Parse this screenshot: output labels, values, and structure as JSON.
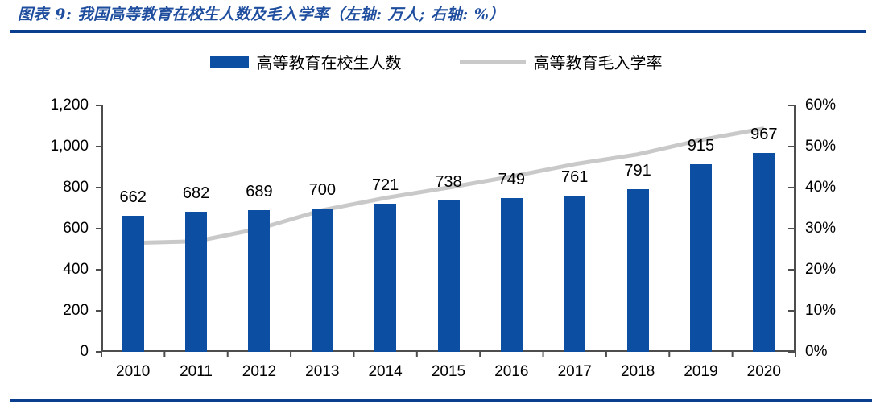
{
  "title": "图表 9: 我国高等教育在校生人数及毛入学率（左轴: 万人; 右轴: %）",
  "legend": {
    "bars_label": "高等教育在校生人数",
    "line_label": "高等教育毛入学率"
  },
  "colors": {
    "bar": "#0b4ea2",
    "line": "#c9c9c9",
    "title": "#1f4e9f",
    "rule": "#0a3f8f",
    "axis": "#4d4d4d",
    "text": "#000000"
  },
  "chart_data": {
    "type": "bar",
    "title": "我国高等教育在校生人数及毛入学率",
    "categories": [
      "2010",
      "2011",
      "2012",
      "2013",
      "2014",
      "2015",
      "2016",
      "2017",
      "2018",
      "2019",
      "2020"
    ],
    "series": [
      {
        "name": "高等教育在校生人数",
        "type": "bar",
        "axis": "left",
        "unit": "万人",
        "values": [
          662,
          682,
          689,
          700,
          721,
          738,
          749,
          761,
          791,
          915,
          967
        ],
        "data_labels": [
          "662",
          "682",
          "689",
          "700",
          "721",
          "738",
          "749",
          "761",
          "791",
          "915",
          "967"
        ]
      },
      {
        "name": "高等教育毛入学率",
        "type": "line",
        "axis": "right",
        "unit": "%",
        "values": [
          26.5,
          26.9,
          30.0,
          34.5,
          37.5,
          40.0,
          42.7,
          45.7,
          48.1,
          51.6,
          54.4
        ]
      }
    ],
    "left_axis": {
      "min": 0,
      "max": 1200,
      "step": 200,
      "tick_labels": [
        "0",
        "200",
        "400",
        "600",
        "800",
        "1,000",
        "1,200"
      ]
    },
    "right_axis": {
      "min": 0,
      "max": 60,
      "step": 10,
      "tick_labels": [
        "0%",
        "10%",
        "20%",
        "30%",
        "40%",
        "50%",
        "60%"
      ]
    },
    "grid": false,
    "legend_position": "top"
  }
}
